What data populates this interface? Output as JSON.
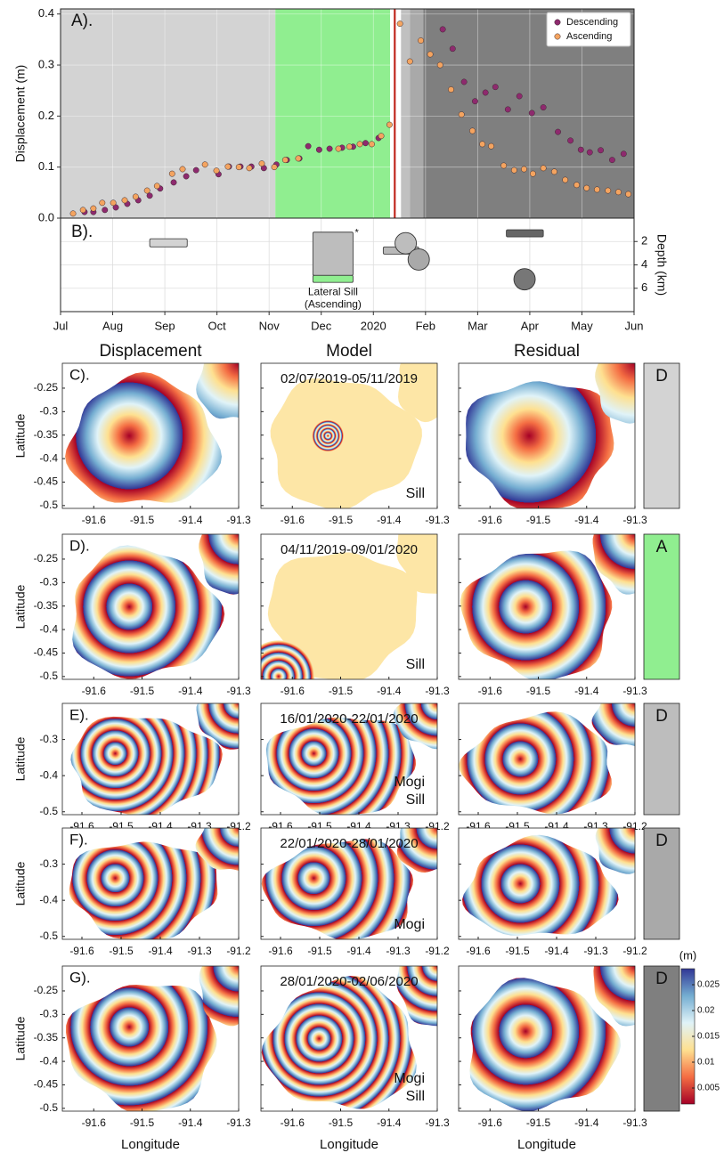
{
  "chart_data": [
    {
      "type": "scatter",
      "label": "A).",
      "y_label": "Displacement (m)",
      "xlim": [
        0,
        11
      ],
      "ylim": [
        0,
        0.41
      ],
      "yticks": [
        {
          "value": 0,
          "label": "0.0"
        },
        0.1,
        0.2,
        0.3,
        0.4
      ],
      "grid": true,
      "legend": "upper right",
      "periods": [
        {
          "start": 0,
          "end": 4.12,
          "color": "#d3d3d3"
        },
        {
          "start": 4.12,
          "end": 6.32,
          "color": "#90ee90"
        },
        {
          "start": 6.53,
          "end": 6.7,
          "color": "#c0c0c0"
        },
        {
          "start": 6.7,
          "end": 6.96,
          "color": "#a9a9a9"
        },
        {
          "start": 6.96,
          "end": 11,
          "color": "#7f7f7f"
        }
      ],
      "event_lines": [
        {
          "x": 6.41,
          "color": "#c0281f"
        }
      ],
      "series": [
        {
          "name": "Descending",
          "color": "#8e2a6e",
          "x": [
            0.46,
            0.63,
            0.85,
            1.06,
            1.28,
            1.49,
            1.71,
            1.91,
            2.17,
            2.41,
            2.6,
            3.03,
            3.23,
            3.45,
            3.66,
            3.9,
            4.14,
            4.34,
            4.58,
            4.75,
            4.96,
            5.16,
            5.4,
            5.61,
            5.85,
            6.1,
            7.33,
            7.52,
            7.74,
            7.95,
            8.15,
            8.34,
            8.58,
            8.8,
            9.04,
            9.26,
            9.54,
            9.78,
            9.98,
            10.15,
            10.36,
            10.58,
            10.8
          ],
          "values": [
            0.012,
            0.012,
            0.016,
            0.021,
            0.028,
            0.035,
            0.044,
            0.058,
            0.07,
            0.082,
            0.094,
            0.086,
            0.101,
            0.101,
            0.101,
            0.098,
            0.105,
            0.114,
            0.117,
            0.141,
            0.134,
            0.136,
            0.138,
            0.14,
            0.147,
            0.157,
            0.37,
            0.332,
            0.267,
            0.229,
            0.246,
            0.257,
            0.213,
            0.239,
            0.206,
            0.217,
            0.169,
            0.152,
            0.134,
            0.129,
            0.133,
            0.114,
            0.126
          ]
        },
        {
          "name": "Ascending",
          "color": "#f4a460",
          "x": [
            0.24,
            0.43,
            0.63,
            0.8,
            1.01,
            1.23,
            1.44,
            1.66,
            1.85,
            2.14,
            2.34,
            2.77,
            2.99,
            3.21,
            3.42,
            3.62,
            3.86,
            4.1,
            4.31,
            4.56,
            5.33,
            5.54,
            5.74,
            5.97,
            6.15,
            6.31,
            6.51,
            6.7,
            6.91,
            7.09,
            7.28,
            7.49,
            7.69,
            7.9,
            8.09,
            8.26,
            8.5,
            8.7,
            8.89,
            9.06,
            9.26,
            9.47,
            9.68,
            9.9,
            10.09,
            10.29,
            10.5,
            10.7,
            10.89
          ],
          "values": [
            0.009,
            0.016,
            0.019,
            0.03,
            0.03,
            0.035,
            0.042,
            0.054,
            0.063,
            0.087,
            0.096,
            0.105,
            0.093,
            0.101,
            0.1,
            0.098,
            0.107,
            0.1,
            0.114,
            0.117,
            0.136,
            0.14,
            0.145,
            0.145,
            0.161,
            0.183,
            0.381,
            0.307,
            0.348,
            0.321,
            0.3,
            0.252,
            0.203,
            0.171,
            0.145,
            0.141,
            0.103,
            0.094,
            0.096,
            0.087,
            0.098,
            0.091,
            0.075,
            0.065,
            0.059,
            0.056,
            0.054,
            0.051,
            0.047
          ]
        }
      ]
    },
    {
      "type": "sources",
      "label": "B).",
      "y_label": "Depth (km)",
      "xlim": [
        0,
        11
      ],
      "xticks": [
        {
          "value": 0,
          "label": "Jul"
        },
        {
          "value": 1,
          "label": "Aug"
        },
        {
          "value": 2,
          "label": "Sep"
        },
        {
          "value": 3,
          "label": "Oct"
        },
        {
          "value": 4,
          "label": "Nov"
        },
        {
          "value": 5,
          "label": "Dec"
        },
        {
          "value": 6,
          "label": "2020"
        },
        {
          "value": 7,
          "label": "Feb"
        },
        {
          "value": 8,
          "label": "Mar"
        },
        {
          "value": 9,
          "label": "Apr"
        },
        {
          "value": 10,
          "label": "May"
        },
        {
          "value": 11,
          "label": "Jun"
        }
      ],
      "ylim": [
        0,
        8
      ],
      "yticks": [
        2,
        4,
        6
      ],
      "y_inverted": true,
      "grid": true,
      "boxes": [
        {
          "x": [
            1.71,
            2.43
          ],
          "depth": [
            1.77,
            2.46
          ],
          "color": "#d3d3d3"
        },
        {
          "x": [
            4.84,
            5.61
          ],
          "depth": [
            1.2,
            4.9
          ],
          "color": "#bdbdbd"
        },
        {
          "x": [
            4.84,
            5.61
          ],
          "depth": [
            4.9,
            5.5
          ],
          "color": "#90ee90"
        },
        {
          "x": [
            6.19,
            6.87
          ],
          "depth": [
            2.46,
            3.08
          ],
          "color": "#b8b8b8"
        },
        {
          "x": [
            8.55,
            9.26
          ],
          "depth": [
            1.0,
            1.6
          ],
          "color": "#666666"
        }
      ],
      "spheres": [
        {
          "x": 6.62,
          "depth": 2.15,
          "color": "#bdbdbd"
        },
        {
          "x": 6.87,
          "depth": 3.54,
          "color": "#a9a9a9"
        },
        {
          "x": 8.9,
          "depth": 5.23,
          "color": "#777777"
        }
      ],
      "annotation": [
        "Lateral Sill",
        "(Ascending)"
      ],
      "marker_text": "*"
    }
  ],
  "maps": {
    "column_titles": [
      "Displacement",
      "Model",
      "Residual"
    ],
    "x_label": "Longitude",
    "y_label": "Latitude",
    "rows": [
      {
        "label": "C).",
        "dates": "02/07/2019-05/11/2019",
        "model_text": [
          "Sill"
        ],
        "track": "D",
        "track_color": "#d3d3d3",
        "xlim": [
          -91.665,
          -91.3
        ],
        "xticks": [
          -91.6,
          -91.5,
          -91.4,
          -91.3
        ],
        "ylim": [
          -0.506,
          -0.197
        ],
        "yticks": [
          -0.25,
          -0.3,
          -0.35,
          -0.4,
          -0.45,
          -0.5
        ]
      },
      {
        "label": "D).",
        "dates": "04/11/2019-09/01/2020",
        "model_text": [
          "Sill"
        ],
        "track": "A",
        "track_color": "#90ee90",
        "xlim": [
          -91.665,
          -91.3
        ],
        "xticks": [
          -91.6,
          -91.5,
          -91.4,
          -91.3
        ],
        "ylim": [
          -0.506,
          -0.197
        ],
        "yticks": [
          -0.25,
          -0.3,
          -0.35,
          -0.4,
          -0.45,
          -0.5
        ]
      },
      {
        "label": "E).",
        "dates": "16/01/2020-22/01/2020",
        "model_text": [
          "Mogi",
          "Sill"
        ],
        "track": "D",
        "track_color": "#bdbdbd",
        "xlim": [
          -91.65,
          -91.2
        ],
        "xticks": [
          -91.6,
          -91.5,
          -91.4,
          -91.3,
          -91.2
        ],
        "ylim": [
          -0.508,
          -0.2
        ],
        "yticks": [
          -0.3,
          -0.4,
          -0.5
        ]
      },
      {
        "label": "F).",
        "dates": "22/01/2020-28/01/2020",
        "model_text": [
          "Mogi"
        ],
        "track": "D",
        "track_color": "#a9a9a9",
        "xlim": [
          -91.65,
          -91.2
        ],
        "xticks": [
          -91.6,
          -91.5,
          -91.4,
          -91.3,
          -91.2
        ],
        "ylim": [
          -0.508,
          -0.2
        ],
        "yticks": [
          -0.3,
          -0.4,
          -0.5
        ]
      },
      {
        "label": "G).",
        "dates": "28/01/2020-02/06/2020",
        "model_text": [
          "Mogi",
          "Sill"
        ],
        "track": "D",
        "track_color": "#7f7f7f",
        "xlim": [
          -91.665,
          -91.3
        ],
        "xticks": [
          -91.6,
          -91.5,
          -91.4,
          -91.3
        ],
        "ylim": [
          -0.506,
          -0.197
        ],
        "yticks": [
          -0.25,
          -0.3,
          -0.35,
          -0.4,
          -0.45,
          -0.5
        ]
      }
    ],
    "colorbar": {
      "label": "(m)",
      "lim": [
        0.0019,
        0.0281
      ],
      "ticks": [
        0.025,
        0.02,
        0.015,
        0.01,
        0.005
      ]
    }
  }
}
